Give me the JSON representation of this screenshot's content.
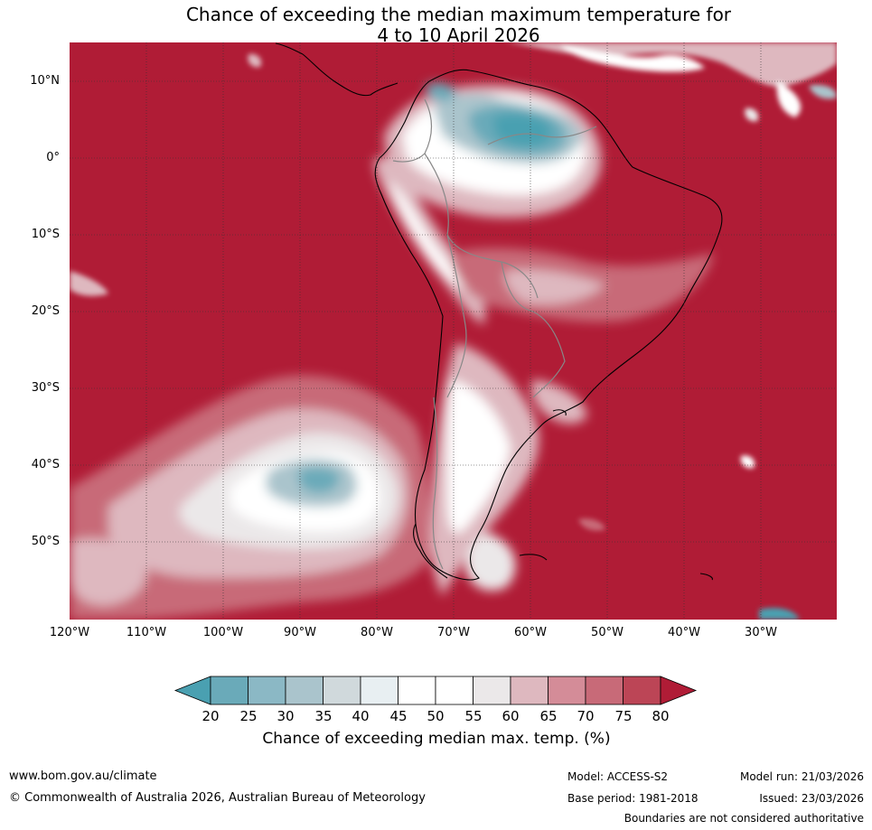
{
  "title": {
    "line1": "Chance of exceeding the median maximum temperature for",
    "line2": "4 to 10 April 2026"
  },
  "map": {
    "region": "South America",
    "lat_labels": [
      "10°N",
      "0°",
      "10°S",
      "20°S",
      "30°S",
      "40°S",
      "50°S"
    ],
    "lon_labels": [
      "120°W",
      "110°W",
      "100°W",
      "90°W",
      "80°W",
      "70°W",
      "60°W",
      "50°W",
      "40°W",
      "30°W"
    ]
  },
  "legend": {
    "ticks": [
      "20",
      "25",
      "30",
      "35",
      "40",
      "45",
      "50",
      "55",
      "60",
      "65",
      "70",
      "75",
      "80"
    ],
    "colors": [
      "#4aa0b1",
      "#6aaab9",
      "#8bb8c5",
      "#aac4cc",
      "#d0d9dc",
      "#e8eff2",
      "#ffffff",
      "#ffffff",
      "#ebe8e9",
      "#deb8bf",
      "#d48c98",
      "#c86a78",
      "#bc4556",
      "#b01c36"
    ],
    "label": "Chance of exceeding median max. temp. (%)"
  },
  "footer": {
    "url": "www.bom.gov.au/climate",
    "copyright": "© Commonwealth of Australia 2026, Australian Bureau of Meteorology",
    "model": "Model: ACCESS-S2",
    "base_period": "Base period: 1981-2018",
    "model_run": "Model run: 21/03/2026",
    "issued": "Issued: 23/03/2026",
    "disclaimer": "Boundaries are not considered authoritative"
  }
}
